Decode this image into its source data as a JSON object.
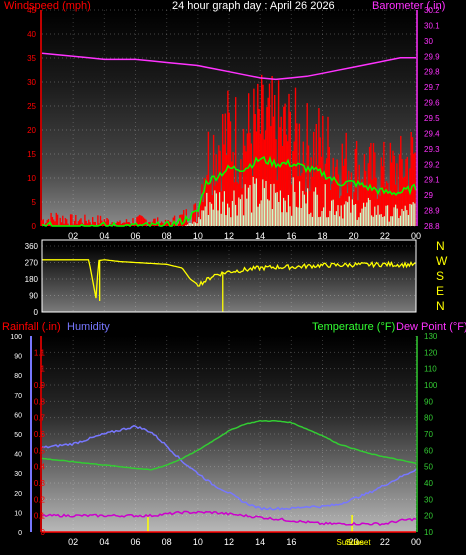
{
  "header": {
    "windspeed_label": "Windspeed (mph)",
    "title": "24 hour graph day : April 26 2026",
    "barometer_label": "Barometer (.in)"
  },
  "lower_header": {
    "rainfall_label": "Rainfall (.in)",
    "humidity_label": "Humidity",
    "temperature_label": "Temperature (°F)",
    "dewpoint_label": "Dew Point (°F)"
  },
  "x_ticks": [
    "02",
    "04",
    "06",
    "08",
    "10",
    "12",
    "14",
    "16",
    "18",
    "20",
    "22",
    "00"
  ],
  "lower_extra_labels": [
    "Sunrise",
    "Sunset"
  ],
  "colors": {
    "windspeed": "#ff0000",
    "gust_avg": "#00ff00",
    "wind_min": "#ccffcc",
    "barometer": "#ff33ff",
    "wind_dir": "#ffff00",
    "humidity": "#7777ff",
    "temperature": "#33cc33",
    "dewpoint": "#cc00cc",
    "axis_text": "#ffffff",
    "left_axis": "#ff0000",
    "right_axis": "#ff33ff"
  },
  "chart_data": [
    {
      "type": "line",
      "title": "24 hour graph day : April 26 2026",
      "ylabel": "Windspeed (mph)",
      "ylabel_right": "Barometer (.in)",
      "ylim": [
        0,
        45
      ],
      "ylim_right": [
        28.8,
        30.2
      ],
      "y_ticks": [
        0,
        5,
        10,
        15,
        20,
        25,
        30,
        35,
        40,
        45
      ],
      "y_ticks_right": [
        "28.8",
        "28.9",
        "29",
        "29.1",
        "29.2",
        "29.3",
        "29.4",
        "29.5",
        "29.6",
        "29.7",
        "29.8",
        "29.9",
        "30",
        "30.1",
        "30.2"
      ],
      "x_hours": [
        0,
        1,
        2,
        3,
        4,
        5,
        6,
        7,
        8,
        9,
        10,
        10.5,
        11,
        12,
        13,
        14,
        15,
        16,
        17,
        18,
        19,
        20,
        21,
        22,
        23,
        24
      ],
      "series": [
        {
          "key": "wind_gust",
          "values": [
            2,
            3,
            2,
            2,
            2,
            1,
            2,
            2,
            1,
            3,
            5,
            18,
            22,
            25,
            24,
            27,
            26,
            25,
            22,
            22,
            18,
            17,
            15,
            15,
            16,
            20
          ]
        },
        {
          "key": "wind_avg",
          "values": [
            0,
            0,
            0,
            0,
            0,
            0,
            0,
            0,
            0,
            1,
            3,
            9,
            10,
            12,
            12,
            14,
            13,
            13,
            12,
            11,
            9,
            9,
            8,
            7,
            7,
            8
          ]
        },
        {
          "key": "wind_min",
          "values": [
            0,
            0,
            0,
            0,
            0,
            0,
            0,
            0,
            0,
            0,
            1,
            5,
            6,
            6,
            7,
            7,
            7,
            7,
            6,
            6,
            5,
            4,
            4,
            3,
            3,
            4
          ]
        },
        {
          "key": "barometer",
          "values": [
            29.92,
            29.91,
            29.9,
            29.89,
            29.88,
            29.88,
            29.88,
            29.87,
            29.86,
            29.85,
            29.84,
            29.83,
            29.82,
            29.8,
            29.78,
            29.76,
            29.75,
            29.76,
            29.77,
            29.79,
            29.81,
            29.83,
            29.85,
            29.87,
            29.89,
            29.89
          ]
        }
      ]
    },
    {
      "type": "line",
      "ylabel_right": [
        "N",
        "W",
        "S",
        "E",
        "N"
      ],
      "ylim": [
        0,
        360
      ],
      "y_ticks": [
        0,
        90,
        180,
        270,
        360
      ],
      "x_hours": [
        0,
        1,
        2,
        3,
        3.5,
        3.6,
        4,
        5,
        6,
        7,
        8,
        9,
        9.5,
        10,
        10.5,
        11,
        11.5,
        12,
        13,
        14,
        15,
        16,
        17,
        18,
        19,
        20,
        21,
        22,
        23,
        24
      ],
      "series": [
        {
          "key": "wind_dir",
          "values": [
            285,
            285,
            285,
            285,
            60,
            280,
            285,
            275,
            270,
            265,
            260,
            240,
            180,
            150,
            170,
            200,
            210,
            220,
            230,
            240,
            245,
            245,
            250,
            255,
            255,
            258,
            258,
            260,
            258,
            258
          ]
        }
      ]
    },
    {
      "type": "line",
      "ylabel": "Humidity",
      "ylabel_rain": "Rainfall (.in)",
      "ylabel_right": "Temperature (°F) Dew Point (°F)",
      "ylim_humidity": [
        0,
        100
      ],
      "ylim_rain": [
        0,
        1.2
      ],
      "ylim_right": [
        10,
        130
      ],
      "y_ticks_humidity": [
        0,
        10,
        20,
        30,
        40,
        50,
        60,
        70,
        80,
        90,
        100
      ],
      "y_ticks_rain": [
        "0",
        "0.1",
        "0.2",
        "0.3",
        "0.4",
        "0.5",
        "0.6",
        "0.7",
        "0.8",
        "0.9",
        "1",
        "1.1"
      ],
      "y_ticks_right": [
        10,
        20,
        30,
        40,
        50,
        60,
        70,
        80,
        90,
        100,
        110,
        120,
        130
      ],
      "x_hours": [
        0,
        2,
        4,
        6,
        7,
        8,
        9,
        10,
        11,
        12,
        13,
        14,
        15,
        16,
        17,
        18,
        19,
        20,
        21,
        22,
        23,
        24
      ],
      "series": [
        {
          "key": "temperature",
          "values": [
            55,
            53,
            51,
            49,
            48,
            51,
            55,
            60,
            66,
            72,
            76,
            78,
            78,
            77,
            73,
            69,
            64,
            61,
            58,
            56,
            54,
            52
          ]
        },
        {
          "key": "humidity",
          "values": [
            43,
            45,
            50,
            54,
            51,
            44,
            36,
            30,
            24,
            20,
            15,
            12,
            12,
            12,
            13,
            13,
            14,
            17,
            20,
            24,
            28,
            32
          ]
        },
        {
          "key": "dewpoint",
          "values": [
            20,
            20,
            20,
            20,
            20,
            21,
            22,
            22,
            22,
            21,
            20,
            19,
            18,
            17,
            16,
            15,
            15,
            15,
            15,
            15,
            17,
            18
          ]
        },
        {
          "key": "rainfall",
          "values": [
            0,
            0,
            0,
            0,
            0,
            0,
            0,
            0,
            0,
            0,
            0,
            0,
            0,
            0,
            0,
            0,
            0,
            0,
            0,
            0,
            0,
            0
          ]
        }
      ]
    }
  ]
}
